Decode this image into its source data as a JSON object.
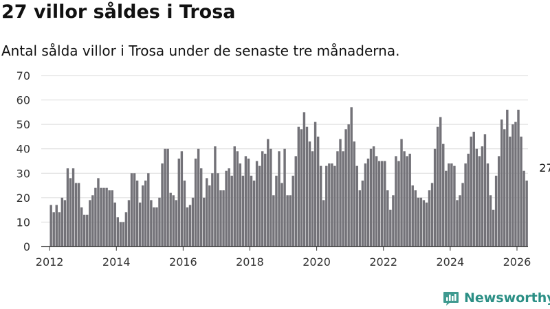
{
  "chart_data": {
    "type": "bar",
    "title": "27 villor såldes i Trosa",
    "subtitle": "Antal sålda villor i Trosa under de senaste tre månaderna.",
    "xlabel": "",
    "ylabel": "",
    "ylim": [
      0,
      70
    ],
    "yticks": [
      0,
      10,
      20,
      30,
      40,
      50,
      60,
      70
    ],
    "xlim": [
      2011.75,
      2026.33
    ],
    "xticks": [
      2012,
      2014,
      2016,
      2018,
      2020,
      2022,
      2024,
      2026
    ],
    "grid": true,
    "series": [
      {
        "name": "Antal sålda villor",
        "start_year": 2012,
        "start_month": 1,
        "values": [
          17,
          14,
          17,
          14,
          20,
          19,
          32,
          28,
          32,
          26,
          26,
          16,
          13,
          13,
          19,
          21,
          24,
          28,
          24,
          24,
          24,
          23,
          23,
          18,
          12,
          10,
          10,
          14,
          19,
          30,
          30,
          27,
          18,
          25,
          27,
          30,
          19,
          16,
          16,
          20,
          34,
          40,
          40,
          22,
          21,
          19,
          36,
          39,
          27,
          16,
          17,
          20,
          36,
          40,
          32,
          20,
          28,
          25,
          30,
          41,
          30,
          23,
          23,
          31,
          32,
          29,
          41,
          39,
          34,
          29,
          37,
          36,
          29,
          27,
          35,
          33,
          39,
          38,
          44,
          40,
          21,
          29,
          39,
          26,
          40,
          21,
          21,
          29,
          37,
          49,
          48,
          55,
          49,
          43,
          39,
          51,
          45,
          33,
          19,
          33,
          34,
          34,
          33,
          39,
          44,
          39,
          48,
          50,
          57,
          43,
          33,
          23,
          27,
          34,
          36,
          40,
          41,
          37,
          35,
          35,
          35,
          23,
          15,
          21,
          37,
          35,
          44,
          39,
          37,
          38,
          25,
          23,
          20,
          20,
          19,
          18,
          23,
          26,
          40,
          49,
          53,
          42,
          31,
          34,
          34,
          33,
          19,
          21,
          26,
          34,
          38,
          45,
          47,
          40,
          37,
          41,
          46,
          34,
          21,
          15,
          29,
          37,
          52,
          48,
          56,
          45,
          50,
          51,
          56,
          45,
          31,
          27
        ]
      }
    ],
    "highlight": {
      "index": 178,
      "label": "27",
      "value": 27
    },
    "colors": {
      "bar": "#737278",
      "highlight": "#2b9b92",
      "grid": "#d9d9d9",
      "axis": "#333333",
      "text": "#333333"
    }
  },
  "branding": {
    "name": "Newsworthy",
    "color": "#2b8f85"
  }
}
